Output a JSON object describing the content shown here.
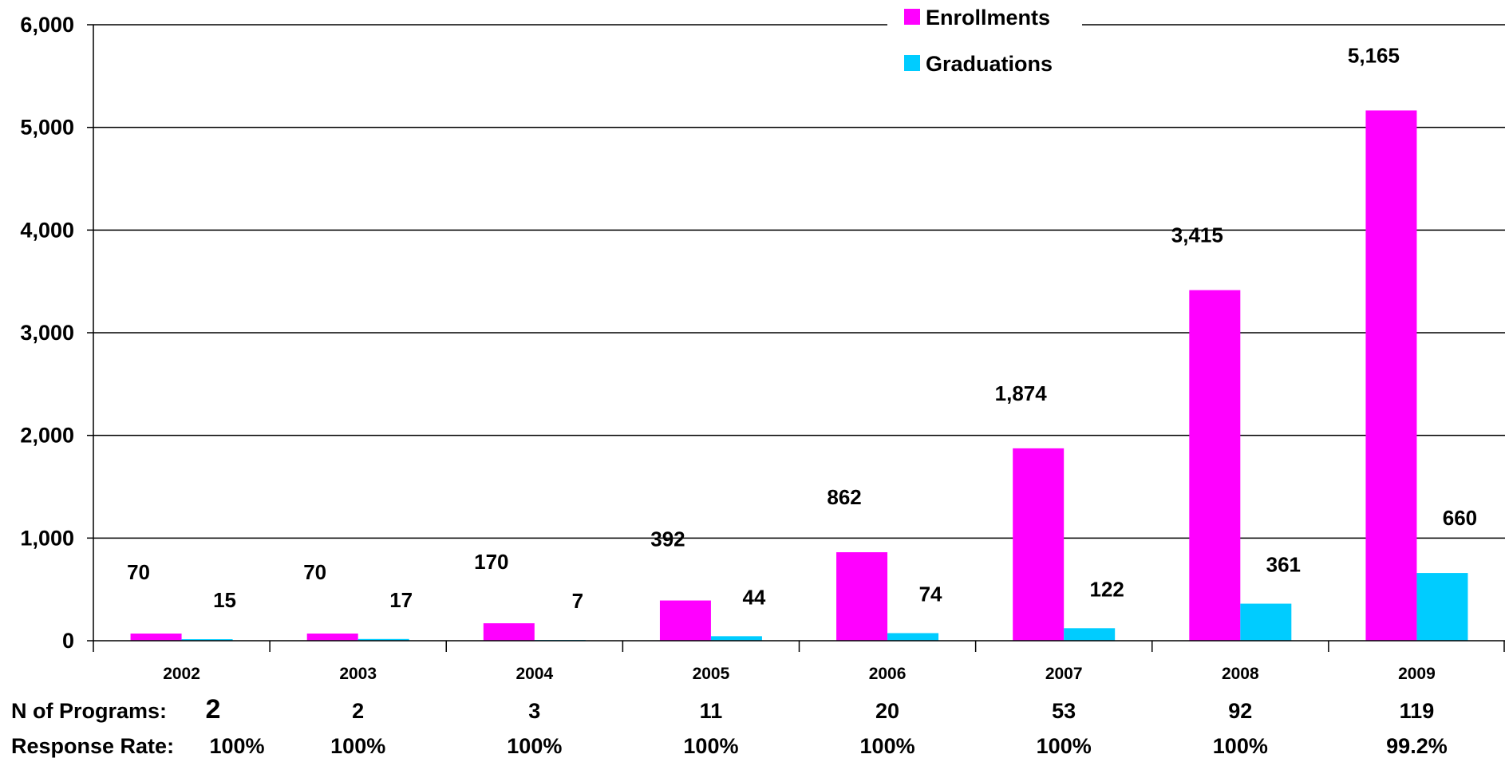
{
  "chart_data": {
    "type": "bar",
    "title": "",
    "xlabel": "",
    "ylabel": "",
    "categories": [
      "2002",
      "2003",
      "2004",
      "2005",
      "2006",
      "2007",
      "2008",
      "2009"
    ],
    "series": [
      {
        "name": "Enrollments",
        "color": "#FF00FF",
        "values": [
          70,
          70,
          170,
          392,
          862,
          1874,
          3415,
          5165
        ],
        "labels": [
          "70",
          "70",
          "170",
          "392",
          "862",
          "1,874",
          "3,415",
          "5,165"
        ]
      },
      {
        "name": "Graduations",
        "color": "#00CCFF",
        "values": [
          15,
          17,
          7,
          44,
          74,
          122,
          361,
          660
        ],
        "labels": [
          "15",
          "17",
          "7",
          "44",
          "74",
          "122",
          "361",
          "660"
        ]
      }
    ],
    "ylim": [
      0,
      6000
    ],
    "yticks": [
      0,
      1000,
      2000,
      3000,
      4000,
      5000,
      6000
    ],
    "ytick_labels": [
      "0",
      "1,000",
      "2,000",
      "3,000",
      "4,000",
      "5,000",
      "6,000"
    ],
    "grid": true,
    "legend_position": "top-right"
  },
  "footer": {
    "programs_label": "N of Programs:",
    "programs": [
      "2",
      "2",
      "3",
      "11",
      "20",
      "53",
      "92",
      "119"
    ],
    "response_label": "Response Rate:",
    "response": [
      "100%",
      "100%",
      "100%",
      "100%",
      "100%",
      "100%",
      "100%",
      "99.2%"
    ]
  }
}
